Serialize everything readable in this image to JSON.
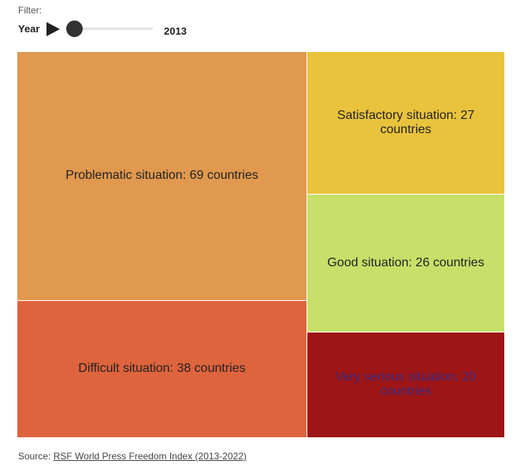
{
  "filter": {
    "label": "Filter:",
    "control_label": "Year",
    "current_year": "2013",
    "year_range": [
      2013,
      2022
    ],
    "play_icon": "play-icon"
  },
  "chart_data": {
    "type": "treemap",
    "title": "",
    "year": 2013,
    "categories": [
      "Problematic situation",
      "Difficult situation",
      "Satisfactory situation",
      "Good situation",
      "Very serious situation"
    ],
    "values": [
      69,
      38,
      27,
      26,
      20
    ],
    "labels": [
      "Problematic situation: 69 countries",
      "Difficult situation: 38 countries",
      "Satisfactory situation: 27 countries",
      "Good situation: 26 countries",
      "Very serious situation: 20 countries"
    ],
    "colors": [
      "#e0994e",
      "#de643d",
      "#eac33d",
      "#c8e06a",
      "#9e1515"
    ]
  },
  "source": {
    "prefix": "Source: ",
    "link_text": "RSF World Press Freedom Index (2013-2022)"
  }
}
